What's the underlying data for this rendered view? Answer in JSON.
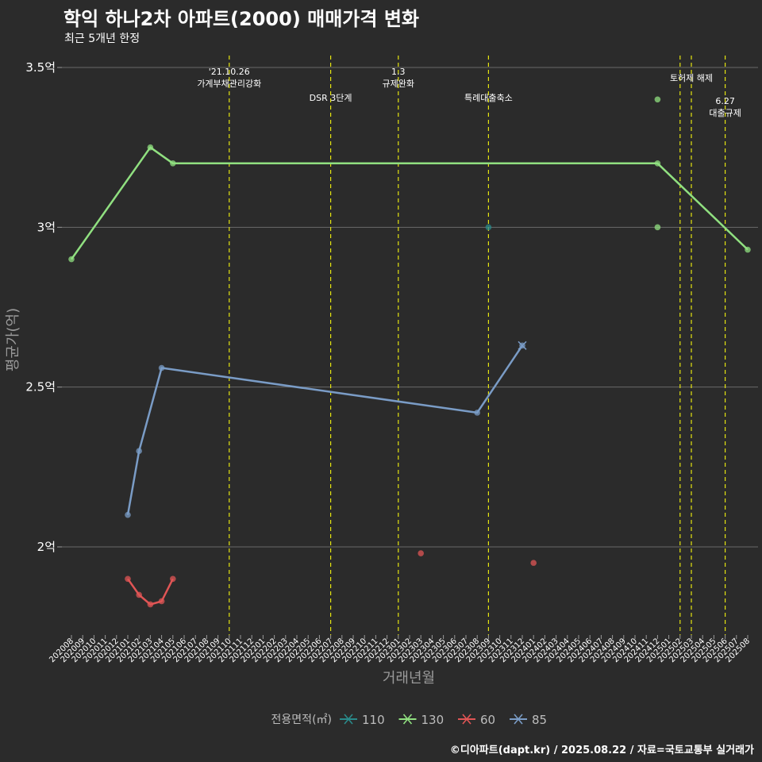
{
  "header": {
    "title": "학익 하나2차 아파트(2000) 매매가격 변화",
    "subtitle": "최근 5개년 한정"
  },
  "caption": "©디아파트(dapt.kr) / 2025.08.22 / 자료=국토교통부 실거래가",
  "colors": {
    "background": "#2b2b2b",
    "grid": "#6a6a6a",
    "event_line": "#e5e510"
  },
  "chart_data": {
    "type": "line",
    "xlabel": "거래년월",
    "ylabel": "평균가(억)",
    "ylim": [
      1.75,
      3.55
    ],
    "yticks": [
      {
        "value": 2.0,
        "label": "2억"
      },
      {
        "value": 2.5,
        "label": "2.5억"
      },
      {
        "value": 3.0,
        "label": "3억"
      },
      {
        "value": 3.5,
        "label": "3.5억"
      }
    ],
    "x_categories": [
      "202008",
      "202009",
      "202010",
      "202011",
      "202012",
      "202101",
      "202102",
      "202103",
      "202104",
      "202105",
      "202106",
      "202107",
      "202108",
      "202109",
      "202110",
      "202111",
      "202112",
      "202201",
      "202202",
      "202203",
      "202204",
      "202205",
      "202206",
      "202207",
      "202208",
      "202209",
      "202210",
      "202211",
      "202212",
      "202301",
      "202302",
      "202303",
      "202304",
      "202305",
      "202306",
      "202307",
      "202308",
      "202309",
      "202310",
      "202311",
      "202312",
      "202401",
      "202402",
      "202403",
      "202404",
      "202405",
      "202406",
      "202407",
      "202408",
      "202409",
      "202410",
      "202411",
      "202412",
      "202501",
      "202502",
      "202503",
      "202504",
      "202505",
      "202506",
      "202507",
      "202508"
    ],
    "legend": {
      "title": "전용면적(㎡)",
      "position": "bottom"
    },
    "series": [
      {
        "name": "110",
        "color": "#2a8a8a",
        "points": [
          {
            "x": "202309",
            "y": 3.0
          }
        ],
        "extra_points": []
      },
      {
        "name": "130",
        "color": "#90e080",
        "points": [
          {
            "x": "202008",
            "y": 2.9
          },
          {
            "x": "202103",
            "y": 3.25
          },
          {
            "x": "202105",
            "y": 3.2
          },
          {
            "x": "202412",
            "y": 3.2
          },
          {
            "x": "202508",
            "y": 2.93
          }
        ],
        "extra_points": [
          {
            "x": "202412",
            "y": 3.4
          },
          {
            "x": "202412",
            "y": 3.0
          }
        ]
      },
      {
        "name": "60",
        "color": "#e05555",
        "points": [
          {
            "x": "202101",
            "y": 1.9
          },
          {
            "x": "202102",
            "y": 1.85
          },
          {
            "x": "202103",
            "y": 1.82
          },
          {
            "x": "202104",
            "y": 1.83
          },
          {
            "x": "202105",
            "y": 1.9
          }
        ],
        "extra_points": [
          {
            "x": "202303",
            "y": 1.98
          },
          {
            "x": "202401",
            "y": 1.95
          }
        ]
      },
      {
        "name": "85",
        "color": "#7a9cc6",
        "points": [
          {
            "x": "202101",
            "y": 2.1
          },
          {
            "x": "202102",
            "y": 2.3
          },
          {
            "x": "202104",
            "y": 2.56
          },
          {
            "x": "202308",
            "y": 2.42
          },
          {
            "x": "202312",
            "y": 2.63
          }
        ],
        "extra_points": []
      }
    ],
    "events": [
      {
        "x": "202110",
        "lines": [
          "'21.10.26",
          "가계부채관리강화"
        ],
        "row": 0
      },
      {
        "x": "202207",
        "lines": [
          "DSR 3단계"
        ],
        "row": 1
      },
      {
        "x": "202301",
        "lines": [
          "1.3",
          "규제완화"
        ],
        "row": 0
      },
      {
        "x": "202309",
        "lines": [
          "특례대출축소"
        ],
        "row": 1
      },
      {
        "x": "202502",
        "lines": [
          ""
        ],
        "row": 0
      },
      {
        "x": "202503",
        "lines": [
          "토허제 해제"
        ],
        "row": 0
      },
      {
        "x": "202506",
        "lines": [
          "6.27",
          "대출규제"
        ],
        "row": 1
      }
    ]
  }
}
